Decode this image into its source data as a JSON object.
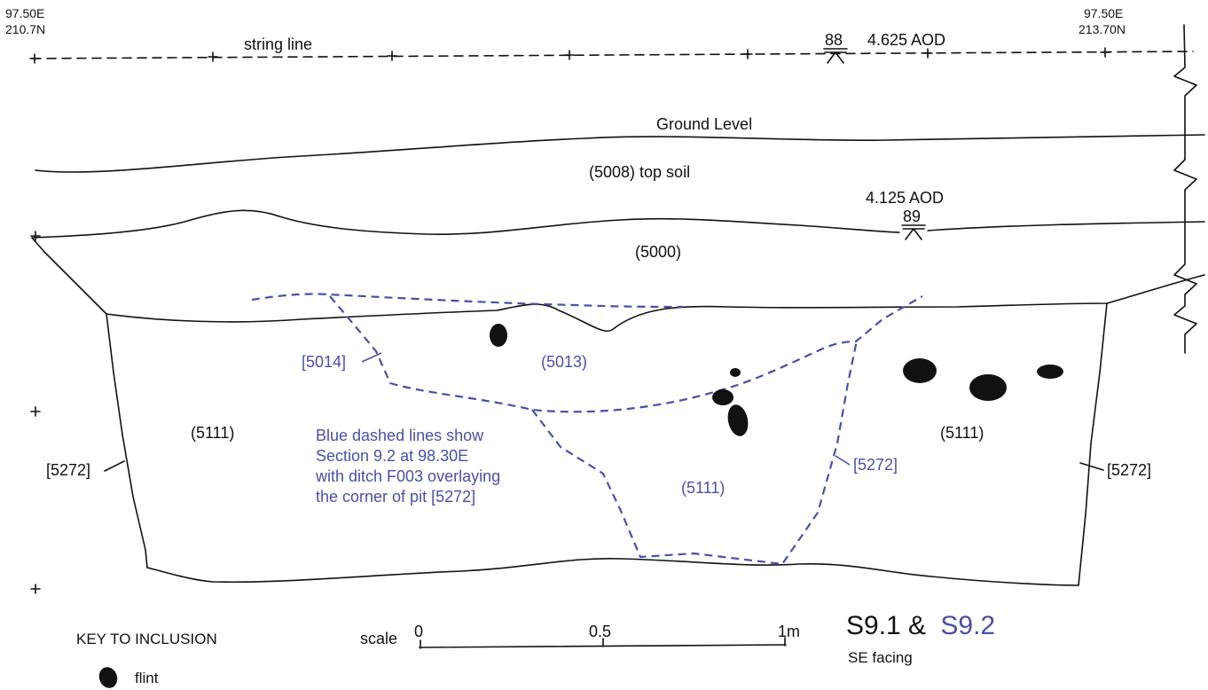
{
  "corners": {
    "left_e": "97.50E",
    "left_n": "210.7N",
    "right_e": "97.50E",
    "right_n": "213.70N"
  },
  "string_line_label": "string line",
  "datum_88": {
    "number": "88",
    "level": "4.625 AOD"
  },
  "datum_89": {
    "number": "89",
    "level": "4.125  AOD"
  },
  "ground_level_label": "Ground Level",
  "layers": {
    "topsoil": "(5008) top soil",
    "subsoil": "(5000)",
    "fill_left": "(5111)",
    "fill_right": "(5111)",
    "fill_center": "(5111)",
    "ditch_fill": "(5013)"
  },
  "cuts": {
    "left": "[5272]",
    "right": "[5272]",
    "inner": "[5272]",
    "ditch": "[5014]"
  },
  "note_lines": [
    "Blue dashed lines show",
    "Section 9.2 at 98.30E",
    "with ditch F003 overlaying",
    "the corner of pit [5272]"
  ],
  "key": {
    "title": "KEY TO INCLUSION",
    "flint_label": "flint"
  },
  "scale": {
    "label": "scale",
    "ticks": [
      "0",
      "0.5",
      "1m"
    ]
  },
  "section_title": {
    "part1": "S9.1 &",
    "part2": "S9.2",
    "facing": "SE facing"
  },
  "colors": {
    "ink": "#111111",
    "blue": "#4a4fa8"
  }
}
